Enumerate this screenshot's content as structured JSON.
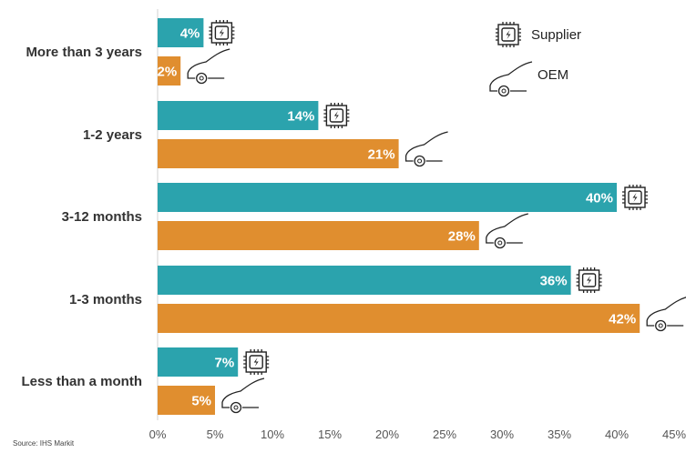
{
  "chart_data": {
    "type": "bar",
    "orientation": "horizontal",
    "categories": [
      "More than 3 years",
      "1-2 years",
      "3-12 months",
      "1-3 months",
      "Less than a month"
    ],
    "series": [
      {
        "name": "Supplier",
        "values": [
          4,
          14,
          40,
          36,
          7
        ],
        "value_labels": [
          "4%",
          "14%",
          "40%",
          "36%",
          "7%"
        ],
        "color": "#2ba3ad",
        "icon": "chip-icon"
      },
      {
        "name": "OEM",
        "values": [
          2,
          21,
          28,
          42,
          5
        ],
        "value_labels": [
          "2%",
          "21%",
          "28%",
          "42%",
          "5%"
        ],
        "color": "#e08e2f",
        "icon": "car-icon"
      }
    ],
    "xlim": [
      0,
      45
    ],
    "x_ticks": [
      0,
      5,
      10,
      15,
      20,
      25,
      30,
      35,
      40,
      45
    ],
    "x_tick_labels": [
      "0%",
      "5%",
      "10%",
      "15%",
      "20%",
      "25%",
      "30%",
      "35%",
      "40%",
      "45%"
    ],
    "grid": false,
    "legend": {
      "placement": "top-right",
      "entries": [
        "Supplier",
        "OEM"
      ]
    },
    "source": "Source: IHS Markit"
  }
}
